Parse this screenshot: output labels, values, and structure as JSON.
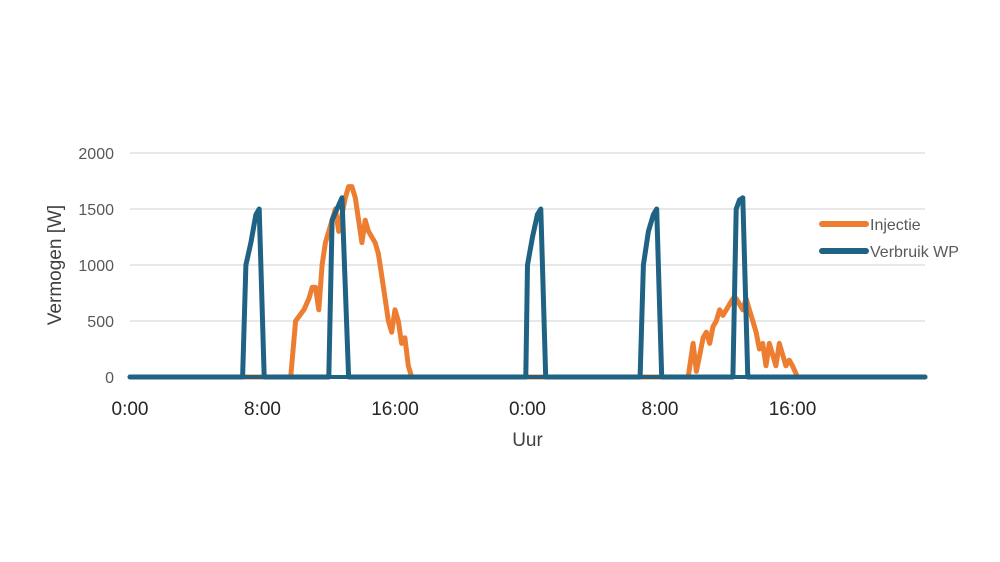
{
  "chart_data": {
    "type": "line",
    "title": "",
    "xlabel": "Uur",
    "ylabel": "Vermogen [W]",
    "x_unit": "hours",
    "xlim": [
      0,
      48
    ],
    "ylim": [
      0,
      2000
    ],
    "yticks": [
      0,
      500,
      1000,
      1500,
      2000
    ],
    "xticks": [
      {
        "value": 0,
        "label": "0:00"
      },
      {
        "value": 8,
        "label": "8:00"
      },
      {
        "value": 16,
        "label": "16:00"
      },
      {
        "value": 24,
        "label": "0:00"
      },
      {
        "value": 32,
        "label": "8:00"
      },
      {
        "value": 40,
        "label": "16:00"
      }
    ],
    "grid": true,
    "legend_position": "right",
    "series": [
      {
        "name": "Injectie",
        "color": "#ED7D31",
        "points": [
          [
            0,
            0
          ],
          [
            9.7,
            0
          ],
          [
            10,
            500
          ],
          [
            10.5,
            600
          ],
          [
            10.8,
            700
          ],
          [
            11,
            800
          ],
          [
            11.2,
            800
          ],
          [
            11.4,
            600
          ],
          [
            11.6,
            1000
          ],
          [
            11.8,
            1200
          ],
          [
            12,
            1300
          ],
          [
            12.2,
            1400
          ],
          [
            12.4,
            1500
          ],
          [
            12.6,
            1300
          ],
          [
            12.8,
            1450
          ],
          [
            13,
            1600
          ],
          [
            13.2,
            1700
          ],
          [
            13.4,
            1700
          ],
          [
            13.6,
            1600
          ],
          [
            13.8,
            1400
          ],
          [
            14,
            1200
          ],
          [
            14.2,
            1400
          ],
          [
            14.4,
            1300
          ],
          [
            14.8,
            1200
          ],
          [
            15,
            1100
          ],
          [
            15.2,
            900
          ],
          [
            15.4,
            700
          ],
          [
            15.6,
            500
          ],
          [
            15.8,
            400
          ],
          [
            16,
            600
          ],
          [
            16.2,
            500
          ],
          [
            16.4,
            300
          ],
          [
            16.6,
            350
          ],
          [
            16.8,
            100
          ],
          [
            17,
            0
          ],
          [
            33.7,
            0
          ],
          [
            34,
            300
          ],
          [
            34.2,
            50
          ],
          [
            34.4,
            200
          ],
          [
            34.6,
            350
          ],
          [
            34.8,
            400
          ],
          [
            35,
            300
          ],
          [
            35.2,
            450
          ],
          [
            35.4,
            500
          ],
          [
            35.6,
            600
          ],
          [
            35.8,
            550
          ],
          [
            36,
            600
          ],
          [
            36.2,
            650
          ],
          [
            36.4,
            700
          ],
          [
            36.6,
            700
          ],
          [
            36.8,
            650
          ],
          [
            37,
            600
          ],
          [
            37.2,
            700
          ],
          [
            37.4,
            600
          ],
          [
            37.6,
            500
          ],
          [
            37.8,
            400
          ],
          [
            38,
            250
          ],
          [
            38.2,
            300
          ],
          [
            38.4,
            100
          ],
          [
            38.6,
            300
          ],
          [
            38.8,
            200
          ],
          [
            39,
            100
          ],
          [
            39.2,
            300
          ],
          [
            39.4,
            200
          ],
          [
            39.6,
            100
          ],
          [
            39.8,
            150
          ],
          [
            40,
            100
          ],
          [
            40.3,
            0
          ],
          [
            48,
            0
          ]
        ]
      },
      {
        "name": "Verbruik WP",
        "color": "#1F6283",
        "points": [
          [
            0,
            0
          ],
          [
            6.8,
            0
          ],
          [
            7,
            1000
          ],
          [
            7.3,
            1200
          ],
          [
            7.6,
            1450
          ],
          [
            7.8,
            1500
          ],
          [
            8.1,
            0
          ],
          [
            12,
            0
          ],
          [
            12.2,
            1400
          ],
          [
            12.5,
            1500
          ],
          [
            12.8,
            1600
          ],
          [
            13.2,
            0
          ],
          [
            23.9,
            0
          ],
          [
            24,
            1000
          ],
          [
            24.3,
            1250
          ],
          [
            24.6,
            1450
          ],
          [
            24.8,
            1500
          ],
          [
            25.1,
            0
          ],
          [
            30.8,
            0
          ],
          [
            31,
            1000
          ],
          [
            31.3,
            1300
          ],
          [
            31.6,
            1450
          ],
          [
            31.8,
            1500
          ],
          [
            32.1,
            0
          ],
          [
            36.4,
            0
          ],
          [
            36.6,
            1500
          ],
          [
            36.8,
            1580
          ],
          [
            37,
            1600
          ],
          [
            37.3,
            0
          ],
          [
            48,
            0
          ]
        ]
      }
    ]
  }
}
